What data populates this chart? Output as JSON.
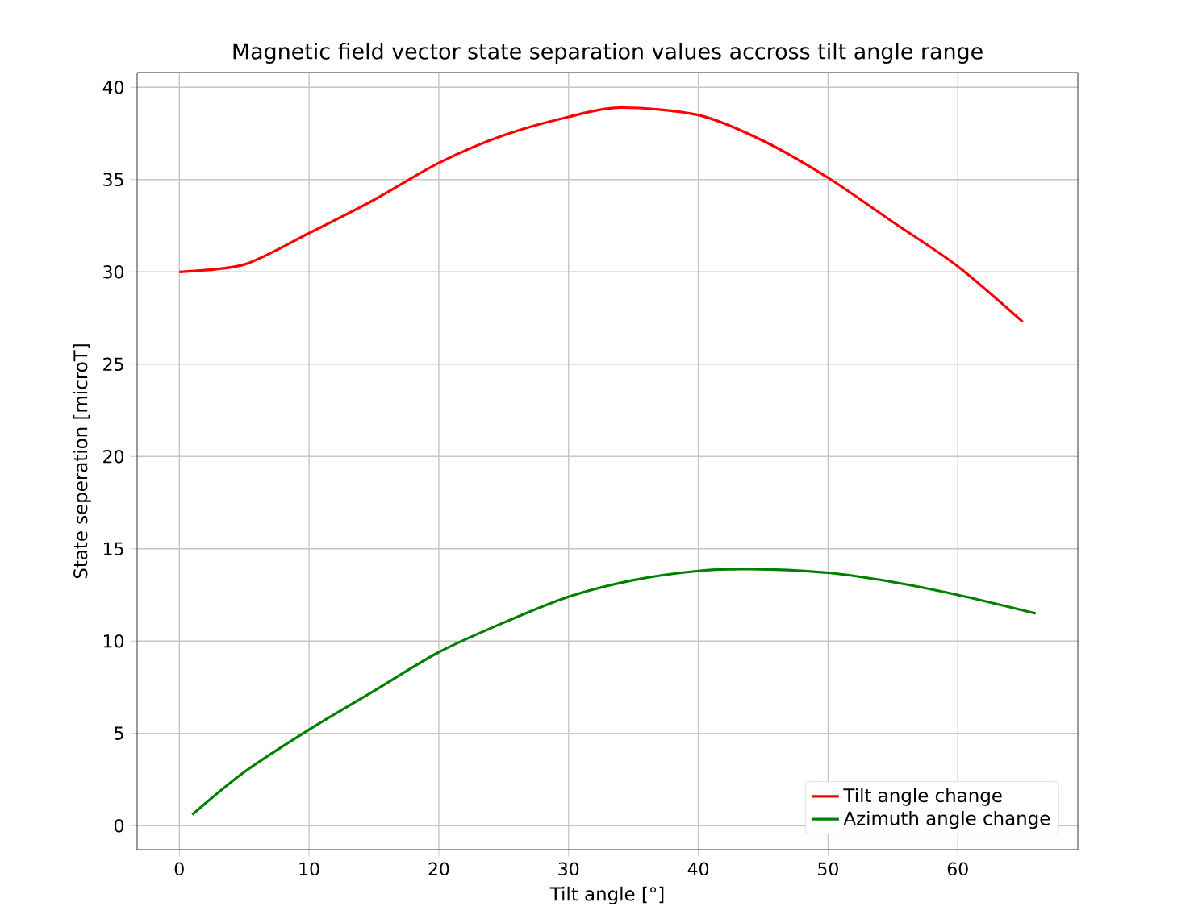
{
  "chart_data": {
    "type": "line",
    "title": "Magnetic field vector state separation values accross tilt angle range",
    "xlabel": "Tilt angle [°]",
    "ylabel": "State seperation [microT]",
    "xlim": [
      -3.25,
      69.25
    ],
    "ylim": [
      -1.3,
      40.8
    ],
    "xticks": [
      0,
      10,
      20,
      30,
      40,
      50,
      60
    ],
    "yticks": [
      0,
      5,
      10,
      15,
      20,
      25,
      30,
      35,
      40
    ],
    "grid": true,
    "legend": "bottom right",
    "series": [
      {
        "name": "Tilt angle change",
        "color": "#ff0000",
        "x": [
          0,
          5,
          10,
          15,
          20,
          25,
          30,
          34,
          40,
          45,
          50,
          55,
          60,
          65
        ],
        "values": [
          30,
          30.4,
          32.1,
          33.9,
          35.9,
          37.4,
          38.4,
          38.9,
          38.5,
          37.1,
          35.1,
          32.7,
          30.3,
          27.3
        ]
      },
      {
        "name": "Azimuth angle change",
        "color": "#008000",
        "x": [
          1,
          5,
          10,
          15,
          20,
          25,
          30,
          35,
          40,
          44,
          50,
          55,
          60,
          66
        ],
        "values": [
          0.6,
          2.9,
          5.2,
          7.3,
          9.4,
          11.0,
          12.4,
          13.3,
          13.8,
          13.9,
          13.7,
          13.2,
          12.5,
          11.5
        ]
      }
    ]
  }
}
